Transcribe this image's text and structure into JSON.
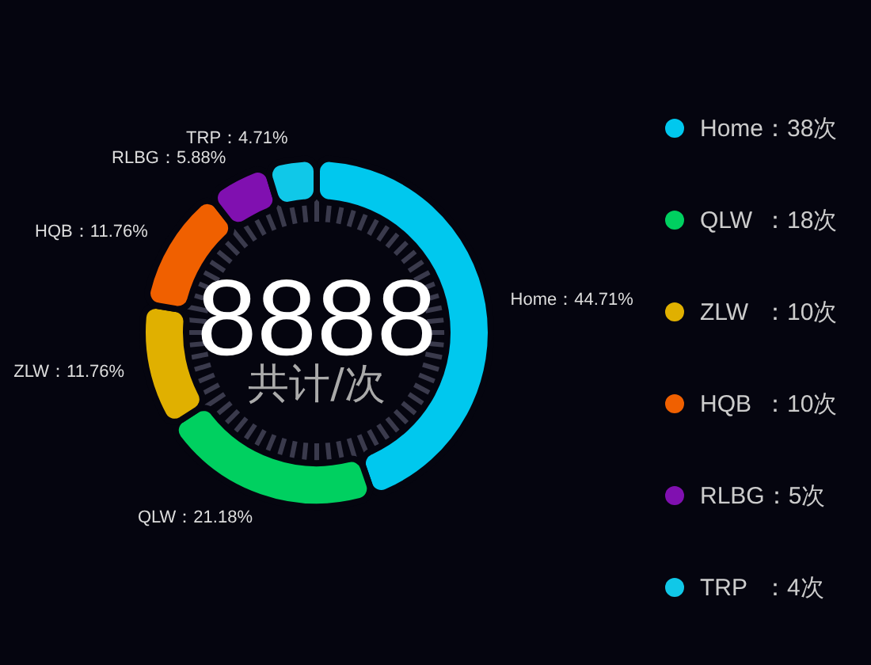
{
  "chart_data": {
    "type": "donut",
    "title": "8888",
    "subtitle": "共计/次",
    "categories": [
      "Home",
      "QLW",
      "ZLW",
      "HQB",
      "RLBG",
      "TRP"
    ],
    "values": [
      38,
      18,
      10,
      10,
      5,
      4
    ],
    "colors": [
      "#00c8ee",
      "#00d060",
      "#e0b000",
      "#f06000",
      "#8010b0",
      "#10c8e8"
    ],
    "value_labels": [
      "：38次",
      "：18次",
      "：10次",
      "：10次",
      "：5次",
      "：4次"
    ],
    "legend": "right",
    "annotations": [
      "Home：44.71%",
      "QLW：21.18%",
      "ZLW：11.76%",
      "HQB：11.76%",
      "RLBG：5.88%",
      "TRP：4.71%"
    ]
  }
}
